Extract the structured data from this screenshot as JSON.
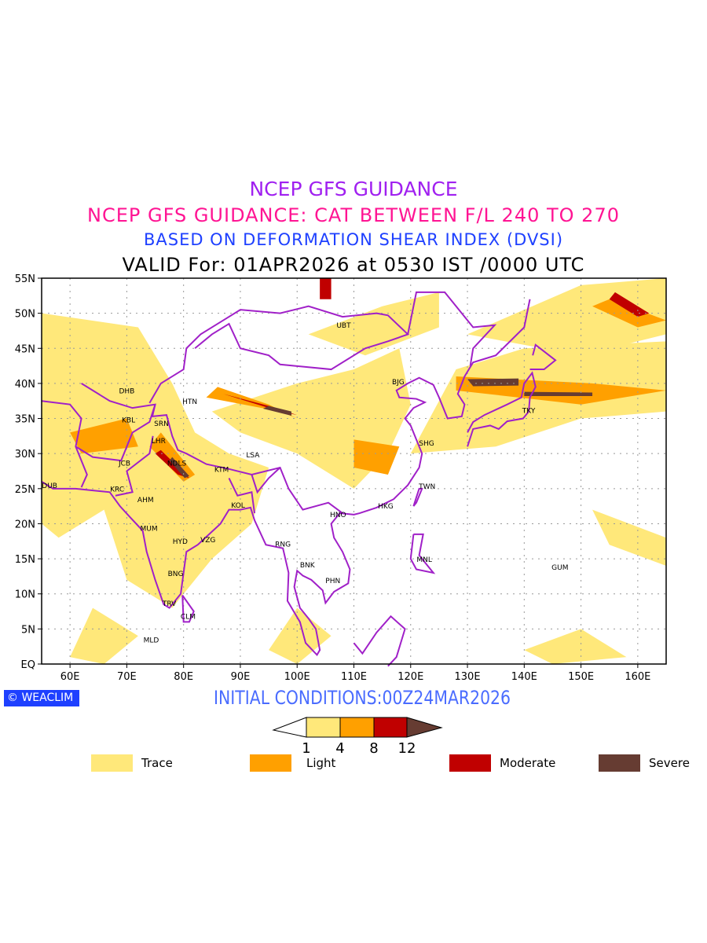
{
  "titles": {
    "line1": "NCEP GFS GUIDANCE",
    "line2": "NCEP GFS GUIDANCE: CAT BETWEEN F/L 240 TO 270",
    "line3": "BASED ON DEFORMATION SHEAR INDEX (DVSI)",
    "line4": "VALID For: 01APR2026 at 0530 IST /0000 UTC"
  },
  "map": {
    "lon_range": [
      55,
      165
    ],
    "lat_range": [
      0,
      55
    ],
    "lat_labels": [
      "EQ",
      "5N",
      "10N",
      "15N",
      "20N",
      "25N",
      "30N",
      "35N",
      "40N",
      "45N",
      "50N",
      "55N"
    ],
    "lon_labels": [
      "60E",
      "70E",
      "80E",
      "90E",
      "100E",
      "110E",
      "120E",
      "130E",
      "140E",
      "150E",
      "160E"
    ],
    "boundary_color": "#a020c8",
    "cities": [
      {
        "code": "DHB",
        "lon": 70,
        "lat": 38.9
      },
      {
        "code": "HTN",
        "lon": 81.1,
        "lat": 37.4
      },
      {
        "code": "KBL",
        "lon": 70.3,
        "lat": 34.8
      },
      {
        "code": "SRN",
        "lon": 76.1,
        "lat": 34.3
      },
      {
        "code": "LHR",
        "lon": 75.6,
        "lat": 31.8
      },
      {
        "code": "JCB",
        "lon": 69.6,
        "lat": 28.6
      },
      {
        "code": "NDLS",
        "lon": 78.8,
        "lat": 28.6
      },
      {
        "code": "KTM",
        "lon": 86.7,
        "lat": 27.7
      },
      {
        "code": "LSA",
        "lon": 92.2,
        "lat": 29.8
      },
      {
        "code": "DUB",
        "lon": 56.4,
        "lat": 25.4
      },
      {
        "code": "KRC",
        "lon": 68.3,
        "lat": 24.9
      },
      {
        "code": "AHM",
        "lon": 73.3,
        "lat": 23.4
      },
      {
        "code": "KOL",
        "lon": 89.6,
        "lat": 22.6
      },
      {
        "code": "MUM",
        "lon": 73.9,
        "lat": 19.3
      },
      {
        "code": "HYD",
        "lon": 79.4,
        "lat": 17.5
      },
      {
        "code": "VZG",
        "lon": 84.3,
        "lat": 17.7
      },
      {
        "code": "BNG",
        "lon": 78.6,
        "lat": 12.9
      },
      {
        "code": "TRV",
        "lon": 77.5,
        "lat": 8.6
      },
      {
        "code": "CLM",
        "lon": 80.8,
        "lat": 6.8
      },
      {
        "code": "MLD",
        "lon": 74.3,
        "lat": 3.4
      },
      {
        "code": "RNG",
        "lon": 97.5,
        "lat": 17.1
      },
      {
        "code": "BNK",
        "lon": 101.8,
        "lat": 14.1
      },
      {
        "code": "PHN",
        "lon": 106.3,
        "lat": 11.9
      },
      {
        "code": "HNO",
        "lon": 107.2,
        "lat": 21.3
      },
      {
        "code": "HKG",
        "lon": 115.6,
        "lat": 22.5
      },
      {
        "code": "TWN",
        "lon": 122.9,
        "lat": 25.3
      },
      {
        "code": "SHG",
        "lon": 122.8,
        "lat": 31.5
      },
      {
        "code": "BJG",
        "lon": 117.8,
        "lat": 40.2
      },
      {
        "code": "UBT",
        "lon": 108.2,
        "lat": 48.3
      },
      {
        "code": "TKY",
        "lon": 140.8,
        "lat": 36.1
      },
      {
        "code": "MNL",
        "lon": 122.4,
        "lat": 14.9
      },
      {
        "code": "GUM",
        "lon": 146.3,
        "lat": 13.8
      }
    ]
  },
  "logo": "WEACLIM",
  "initial_conditions": "INITIAL CONDITIONS:00Z24MAR2026",
  "colorbar": {
    "ticks": [
      "1",
      "4",
      "8",
      "12"
    ],
    "colors": [
      "#ffe87a",
      "#ffa000",
      "#c00000",
      "#663c32"
    ]
  },
  "legend": [
    {
      "label": "Trace",
      "color": "#ffe87a"
    },
    {
      "label": "Light",
      "color": "#ffa000"
    },
    {
      "label": "Moderate",
      "color": "#c00000"
    },
    {
      "label": "Severe",
      "color": "#663c32"
    }
  ]
}
